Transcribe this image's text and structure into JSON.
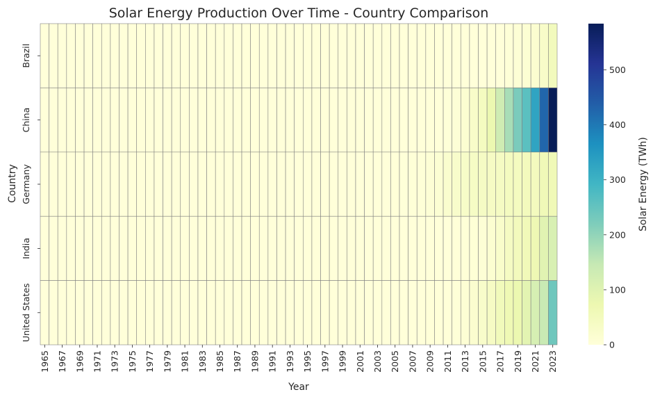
{
  "chart_data": {
    "type": "heatmap",
    "title": "Solar Energy Production Over Time - Country Comparison",
    "xlabel": "Year",
    "ylabel": "Country",
    "colorbar_label": "Solar Energy (TWh)",
    "colormap": "YlGnBu",
    "vmin": 0,
    "vmax": 584,
    "colorbar_ticks": [
      0,
      100,
      200,
      300,
      400,
      500
    ],
    "grid_line_color": "#808080",
    "x_start_year": 1965,
    "x_end_year": 2023,
    "x_tick_labels": [
      "1965",
      "1967",
      "1969",
      "1971",
      "1973",
      "1975",
      "1977",
      "1979",
      "1981",
      "1983",
      "1985",
      "1987",
      "1989",
      "1991",
      "1993",
      "1995",
      "1997",
      "1999",
      "2001",
      "2003",
      "2005",
      "2007",
      "2009",
      "2011",
      "2013",
      "2015",
      "2017",
      "2019",
      "2021",
      "2023"
    ],
    "rows": [
      {
        "name": "Brazil",
        "values": {
          "2012": 0,
          "2013": 0,
          "2014": 0,
          "2015": 0.1,
          "2016": 0.1,
          "2017": 0.8,
          "2018": 3.5,
          "2019": 6.7,
          "2020": 10.8,
          "2021": 16.8,
          "2022": 30.1,
          "2023": 51.0
        }
      },
      {
        "name": "China",
        "values": {
          "2008": 0.2,
          "2009": 0.3,
          "2010": 0.7,
          "2011": 2.6,
          "2012": 6.3,
          "2013": 15.5,
          "2014": 29.2,
          "2015": 45.2,
          "2016": 75.3,
          "2017": 131,
          "2018": 177,
          "2019": 224,
          "2020": 261,
          "2021": 327,
          "2022": 427,
          "2023": 584
        }
      },
      {
        "name": "Germany",
        "values": {
          "2003": 0.3,
          "2004": 0.6,
          "2005": 1.3,
          "2006": 2.2,
          "2007": 3.1,
          "2008": 4.4,
          "2009": 6.6,
          "2010": 11.7,
          "2011": 19.6,
          "2012": 26.4,
          "2013": 31.0,
          "2014": 36.1,
          "2015": 38.7,
          "2016": 38.1,
          "2017": 39.4,
          "2018": 45.8,
          "2019": 46.4,
          "2020": 50.6,
          "2021": 49.3,
          "2022": 60.8,
          "2023": 61.6
        }
      },
      {
        "name": "India",
        "values": {
          "2011": 0.3,
          "2012": 1.0,
          "2013": 3.4,
          "2014": 4.9,
          "2015": 6.6,
          "2016": 13.9,
          "2017": 25.9,
          "2018": 39.7,
          "2019": 50.6,
          "2020": 58.7,
          "2021": 68.3,
          "2022": 95.2,
          "2023": 113
        }
      },
      {
        "name": "United States",
        "values": {
          "2004": 0.6,
          "2005": 0.6,
          "2006": 0.5,
          "2007": 0.6,
          "2008": 0.9,
          "2009": 1.0,
          "2010": 1.3,
          "2011": 1.9,
          "2012": 4.3,
          "2013": 9.3,
          "2014": 17.7,
          "2015": 26.5,
          "2016": 38.3,
          "2017": 55.1,
          "2018": 66.5,
          "2019": 74.6,
          "2020": 91.8,
          "2021": 117,
          "2022": 143,
          "2023": 238
        }
      }
    ]
  }
}
